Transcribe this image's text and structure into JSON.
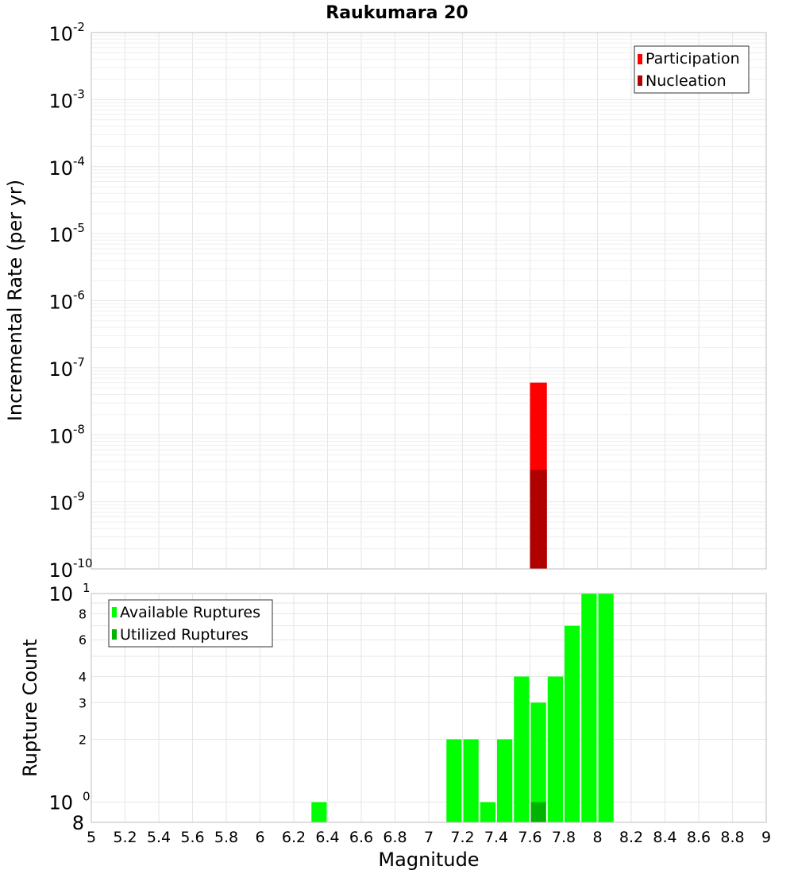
{
  "chart_data": [
    {
      "type": "bar",
      "title": "Raukumara 20",
      "ylabel": "Incremental Rate (per yr)",
      "xlabel": "",
      "xlim": [
        5,
        9
      ],
      "ylim": [
        1e-10,
        0.01
      ],
      "yscale": "log",
      "grid": true,
      "legend_position": "top-right",
      "bin_width": 0.1,
      "series": [
        {
          "name": "Participation",
          "color": "#ff0000",
          "x": [
            7.65
          ],
          "values": [
            6e-08
          ]
        },
        {
          "name": "Nucleation",
          "color": "#b00000",
          "x": [
            7.65
          ],
          "values": [
            3e-09
          ]
        }
      ]
    },
    {
      "type": "bar",
      "ylabel": "Rupture Count",
      "xlabel": "Magnitude",
      "xlim": [
        5,
        9
      ],
      "ylim": [
        0.8,
        10
      ],
      "yscale": "log",
      "grid": true,
      "legend_position": "top-left",
      "bin_width": 0.1,
      "x_ticks": [
        "5",
        "5.2",
        "5.4",
        "5.6",
        "5.8",
        "6",
        "6.2",
        "6.4",
        "6.6",
        "6.8",
        "7",
        "7.2",
        "7.4",
        "7.6",
        "7.8",
        "8",
        "8.2",
        "8.4",
        "8.6",
        "8.8",
        "9"
      ],
      "y_minor_ticks": [
        "8",
        "2",
        "3",
        "4",
        "6",
        "8"
      ],
      "series": [
        {
          "name": "Available Ruptures",
          "color": "#00ff00",
          "x": [
            6.35,
            7.15,
            7.25,
            7.35,
            7.45,
            7.55,
            7.65,
            7.75,
            7.85,
            7.95,
            8.05
          ],
          "values": [
            1,
            2,
            2,
            1,
            2,
            4,
            3,
            4,
            7,
            10,
            10
          ]
        },
        {
          "name": "Utilized Ruptures",
          "color": "#00b300",
          "x": [
            7.65
          ],
          "values": [
            1
          ]
        }
      ]
    }
  ]
}
